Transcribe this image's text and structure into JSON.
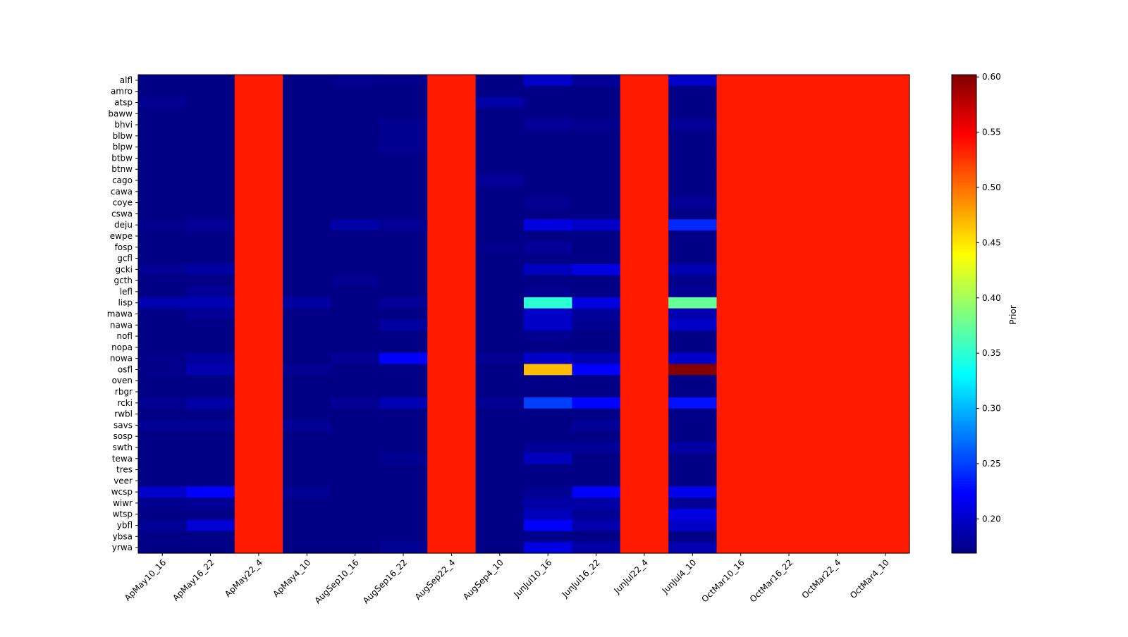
{
  "chart_data": {
    "type": "heatmap",
    "title": "",
    "xlabel": "",
    "ylabel": "",
    "colormap": "jet",
    "colorbar": {
      "label": "Prior",
      "range": [
        0.169,
        0.602
      ],
      "ticks": [
        0.2,
        0.25,
        0.3,
        0.35,
        0.4,
        0.45,
        0.5,
        0.55,
        0.6
      ],
      "tick_labels": [
        "0.20",
        "0.25",
        "0.30",
        "0.35",
        "0.40",
        "0.45",
        "0.50",
        "0.55",
        "0.60"
      ]
    },
    "columns": [
      "ApMay10_16",
      "ApMay16_22",
      "ApMay22_4",
      "ApMay4_10",
      "AugSep10_16",
      "AugSep16_22",
      "AugSep22_4",
      "AugSep4_10",
      "JunJul10_16",
      "JunJul16_22",
      "JunJul22_4",
      "JunJul4_10",
      "OctMar10_16",
      "OctMar16_22",
      "OctMar22_4",
      "OctMar4_10"
    ],
    "rows": [
      "alfl",
      "amro",
      "atsp",
      "baww",
      "bhvi",
      "blbw",
      "blpw",
      "btbw",
      "btnw",
      "cago",
      "cawa",
      "coye",
      "cswa",
      "deju",
      "ewpe",
      "fosp",
      "gcfl",
      "gcki",
      "gcth",
      "lefl",
      "lisp",
      "mawa",
      "nawa",
      "nofl",
      "nopa",
      "nowa",
      "osfl",
      "oven",
      "rbgr",
      "rcki",
      "rwbl",
      "savs",
      "sosp",
      "swth",
      "tewa",
      "tres",
      "veer",
      "wcsp",
      "wiwr",
      "wtsp",
      "ybfl",
      "ybsa",
      "yrwa"
    ],
    "values": [
      [
        0.172,
        0.172,
        0.537,
        0.172,
        0.175,
        0.174,
        0.537,
        0.172,
        0.2,
        0.18,
        0.537,
        0.2,
        0.537,
        0.537,
        0.537,
        0.537
      ],
      [
        0.172,
        0.172,
        0.537,
        0.172,
        0.172,
        0.172,
        0.537,
        0.172,
        0.172,
        0.172,
        0.537,
        0.172,
        0.537,
        0.537,
        0.537,
        0.537
      ],
      [
        0.176,
        0.172,
        0.537,
        0.172,
        0.172,
        0.172,
        0.537,
        0.185,
        0.172,
        0.172,
        0.537,
        0.172,
        0.537,
        0.537,
        0.537,
        0.537
      ],
      [
        0.172,
        0.172,
        0.537,
        0.172,
        0.172,
        0.172,
        0.537,
        0.172,
        0.172,
        0.172,
        0.537,
        0.172,
        0.537,
        0.537,
        0.537,
        0.537
      ],
      [
        0.172,
        0.172,
        0.537,
        0.172,
        0.172,
        0.176,
        0.537,
        0.172,
        0.18,
        0.176,
        0.537,
        0.178,
        0.537,
        0.537,
        0.537,
        0.537
      ],
      [
        0.172,
        0.172,
        0.537,
        0.172,
        0.172,
        0.175,
        0.537,
        0.172,
        0.172,
        0.172,
        0.537,
        0.172,
        0.537,
        0.537,
        0.537,
        0.537
      ],
      [
        0.172,
        0.172,
        0.537,
        0.172,
        0.172,
        0.176,
        0.537,
        0.172,
        0.172,
        0.172,
        0.537,
        0.172,
        0.537,
        0.537,
        0.537,
        0.537
      ],
      [
        0.172,
        0.172,
        0.537,
        0.172,
        0.172,
        0.172,
        0.537,
        0.172,
        0.172,
        0.172,
        0.537,
        0.172,
        0.537,
        0.537,
        0.537,
        0.537
      ],
      [
        0.172,
        0.172,
        0.537,
        0.172,
        0.172,
        0.172,
        0.537,
        0.172,
        0.172,
        0.172,
        0.537,
        0.172,
        0.537,
        0.537,
        0.537,
        0.537
      ],
      [
        0.172,
        0.172,
        0.537,
        0.172,
        0.172,
        0.172,
        0.537,
        0.178,
        0.172,
        0.172,
        0.537,
        0.172,
        0.537,
        0.537,
        0.537,
        0.537
      ],
      [
        0.172,
        0.172,
        0.537,
        0.172,
        0.172,
        0.172,
        0.537,
        0.172,
        0.172,
        0.172,
        0.537,
        0.172,
        0.537,
        0.537,
        0.537,
        0.537
      ],
      [
        0.172,
        0.172,
        0.537,
        0.172,
        0.172,
        0.172,
        0.537,
        0.172,
        0.176,
        0.172,
        0.537,
        0.178,
        0.537,
        0.537,
        0.537,
        0.537
      ],
      [
        0.172,
        0.172,
        0.537,
        0.172,
        0.172,
        0.172,
        0.537,
        0.172,
        0.172,
        0.172,
        0.537,
        0.172,
        0.537,
        0.537,
        0.537,
        0.537
      ],
      [
        0.175,
        0.178,
        0.537,
        0.172,
        0.185,
        0.178,
        0.537,
        0.172,
        0.21,
        0.2,
        0.537,
        0.24,
        0.537,
        0.537,
        0.537,
        0.537
      ],
      [
        0.172,
        0.172,
        0.537,
        0.172,
        0.172,
        0.172,
        0.537,
        0.172,
        0.172,
        0.172,
        0.537,
        0.172,
        0.537,
        0.537,
        0.537,
        0.537
      ],
      [
        0.172,
        0.172,
        0.537,
        0.172,
        0.172,
        0.172,
        0.537,
        0.174,
        0.18,
        0.172,
        0.537,
        0.172,
        0.537,
        0.537,
        0.537,
        0.537
      ],
      [
        0.172,
        0.172,
        0.537,
        0.172,
        0.172,
        0.172,
        0.537,
        0.172,
        0.172,
        0.172,
        0.537,
        0.172,
        0.537,
        0.537,
        0.537,
        0.537
      ],
      [
        0.177,
        0.183,
        0.537,
        0.172,
        0.172,
        0.172,
        0.537,
        0.172,
        0.195,
        0.21,
        0.537,
        0.19,
        0.537,
        0.537,
        0.537,
        0.537
      ],
      [
        0.172,
        0.172,
        0.537,
        0.172,
        0.176,
        0.172,
        0.537,
        0.172,
        0.172,
        0.172,
        0.537,
        0.174,
        0.537,
        0.537,
        0.537,
        0.537
      ],
      [
        0.172,
        0.178,
        0.537,
        0.172,
        0.172,
        0.172,
        0.537,
        0.172,
        0.176,
        0.172,
        0.537,
        0.178,
        0.537,
        0.537,
        0.537,
        0.537
      ],
      [
        0.19,
        0.19,
        0.537,
        0.183,
        0.172,
        0.178,
        0.537,
        0.172,
        0.35,
        0.21,
        0.537,
        0.375,
        0.537,
        0.537,
        0.537,
        0.537
      ],
      [
        0.172,
        0.178,
        0.537,
        0.172,
        0.172,
        0.172,
        0.537,
        0.172,
        0.2,
        0.18,
        0.537,
        0.19,
        0.537,
        0.537,
        0.537,
        0.537
      ],
      [
        0.172,
        0.172,
        0.537,
        0.172,
        0.172,
        0.182,
        0.537,
        0.172,
        0.2,
        0.176,
        0.537,
        0.2,
        0.537,
        0.537,
        0.537,
        0.537
      ],
      [
        0.172,
        0.172,
        0.537,
        0.172,
        0.172,
        0.172,
        0.537,
        0.172,
        0.175,
        0.172,
        0.537,
        0.172,
        0.537,
        0.537,
        0.537,
        0.537
      ],
      [
        0.172,
        0.172,
        0.537,
        0.172,
        0.172,
        0.172,
        0.537,
        0.172,
        0.172,
        0.172,
        0.537,
        0.172,
        0.537,
        0.537,
        0.537,
        0.537
      ],
      [
        0.174,
        0.182,
        0.537,
        0.172,
        0.178,
        0.222,
        0.537,
        0.176,
        0.2,
        0.19,
        0.537,
        0.2,
        0.537,
        0.537,
        0.537,
        0.537
      ],
      [
        0.174,
        0.188,
        0.537,
        0.176,
        0.172,
        0.172,
        0.537,
        0.172,
        0.468,
        0.222,
        0.537,
        0.6,
        0.537,
        0.537,
        0.537,
        0.537
      ],
      [
        0.172,
        0.172,
        0.537,
        0.172,
        0.172,
        0.172,
        0.537,
        0.172,
        0.172,
        0.172,
        0.537,
        0.172,
        0.537,
        0.537,
        0.537,
        0.537
      ],
      [
        0.172,
        0.172,
        0.537,
        0.172,
        0.172,
        0.172,
        0.537,
        0.172,
        0.172,
        0.172,
        0.537,
        0.172,
        0.537,
        0.537,
        0.537,
        0.537
      ],
      [
        0.176,
        0.185,
        0.537,
        0.172,
        0.177,
        0.19,
        0.537,
        0.176,
        0.25,
        0.225,
        0.537,
        0.23,
        0.537,
        0.537,
        0.537,
        0.537
      ],
      [
        0.172,
        0.172,
        0.537,
        0.172,
        0.172,
        0.172,
        0.537,
        0.172,
        0.172,
        0.172,
        0.537,
        0.172,
        0.537,
        0.537,
        0.537,
        0.537
      ],
      [
        0.178,
        0.178,
        0.537,
        0.178,
        0.172,
        0.172,
        0.537,
        0.172,
        0.172,
        0.18,
        0.537,
        0.172,
        0.537,
        0.537,
        0.537,
        0.537
      ],
      [
        0.172,
        0.172,
        0.537,
        0.172,
        0.172,
        0.172,
        0.537,
        0.172,
        0.172,
        0.172,
        0.537,
        0.172,
        0.537,
        0.537,
        0.537,
        0.537
      ],
      [
        0.172,
        0.172,
        0.537,
        0.172,
        0.172,
        0.172,
        0.537,
        0.172,
        0.18,
        0.18,
        0.537,
        0.185,
        0.537,
        0.537,
        0.537,
        0.537
      ],
      [
        0.172,
        0.172,
        0.537,
        0.172,
        0.172,
        0.176,
        0.537,
        0.172,
        0.195,
        0.172,
        0.537,
        0.172,
        0.537,
        0.537,
        0.537,
        0.537
      ],
      [
        0.172,
        0.172,
        0.537,
        0.172,
        0.172,
        0.172,
        0.537,
        0.172,
        0.172,
        0.172,
        0.537,
        0.172,
        0.537,
        0.537,
        0.537,
        0.537
      ],
      [
        0.172,
        0.172,
        0.537,
        0.172,
        0.172,
        0.172,
        0.537,
        0.172,
        0.172,
        0.172,
        0.537,
        0.172,
        0.537,
        0.537,
        0.537,
        0.537
      ],
      [
        0.2,
        0.222,
        0.537,
        0.177,
        0.172,
        0.172,
        0.537,
        0.172,
        0.177,
        0.222,
        0.537,
        0.215,
        0.537,
        0.537,
        0.537,
        0.537
      ],
      [
        0.176,
        0.178,
        0.537,
        0.172,
        0.172,
        0.172,
        0.537,
        0.172,
        0.185,
        0.185,
        0.537,
        0.18,
        0.537,
        0.537,
        0.537,
        0.537
      ],
      [
        0.172,
        0.172,
        0.537,
        0.172,
        0.172,
        0.172,
        0.537,
        0.172,
        0.193,
        0.178,
        0.537,
        0.21,
        0.537,
        0.537,
        0.537,
        0.537
      ],
      [
        0.178,
        0.205,
        0.537,
        0.172,
        0.172,
        0.172,
        0.537,
        0.172,
        0.222,
        0.188,
        0.537,
        0.2,
        0.537,
        0.537,
        0.537,
        0.537
      ],
      [
        0.172,
        0.172,
        0.537,
        0.172,
        0.172,
        0.172,
        0.537,
        0.172,
        0.174,
        0.172,
        0.537,
        0.172,
        0.537,
        0.537,
        0.537,
        0.537
      ],
      [
        0.172,
        0.172,
        0.537,
        0.172,
        0.172,
        0.178,
        0.537,
        0.172,
        0.21,
        0.185,
        0.537,
        0.19,
        0.537,
        0.537,
        0.537,
        0.537
      ]
    ]
  }
}
